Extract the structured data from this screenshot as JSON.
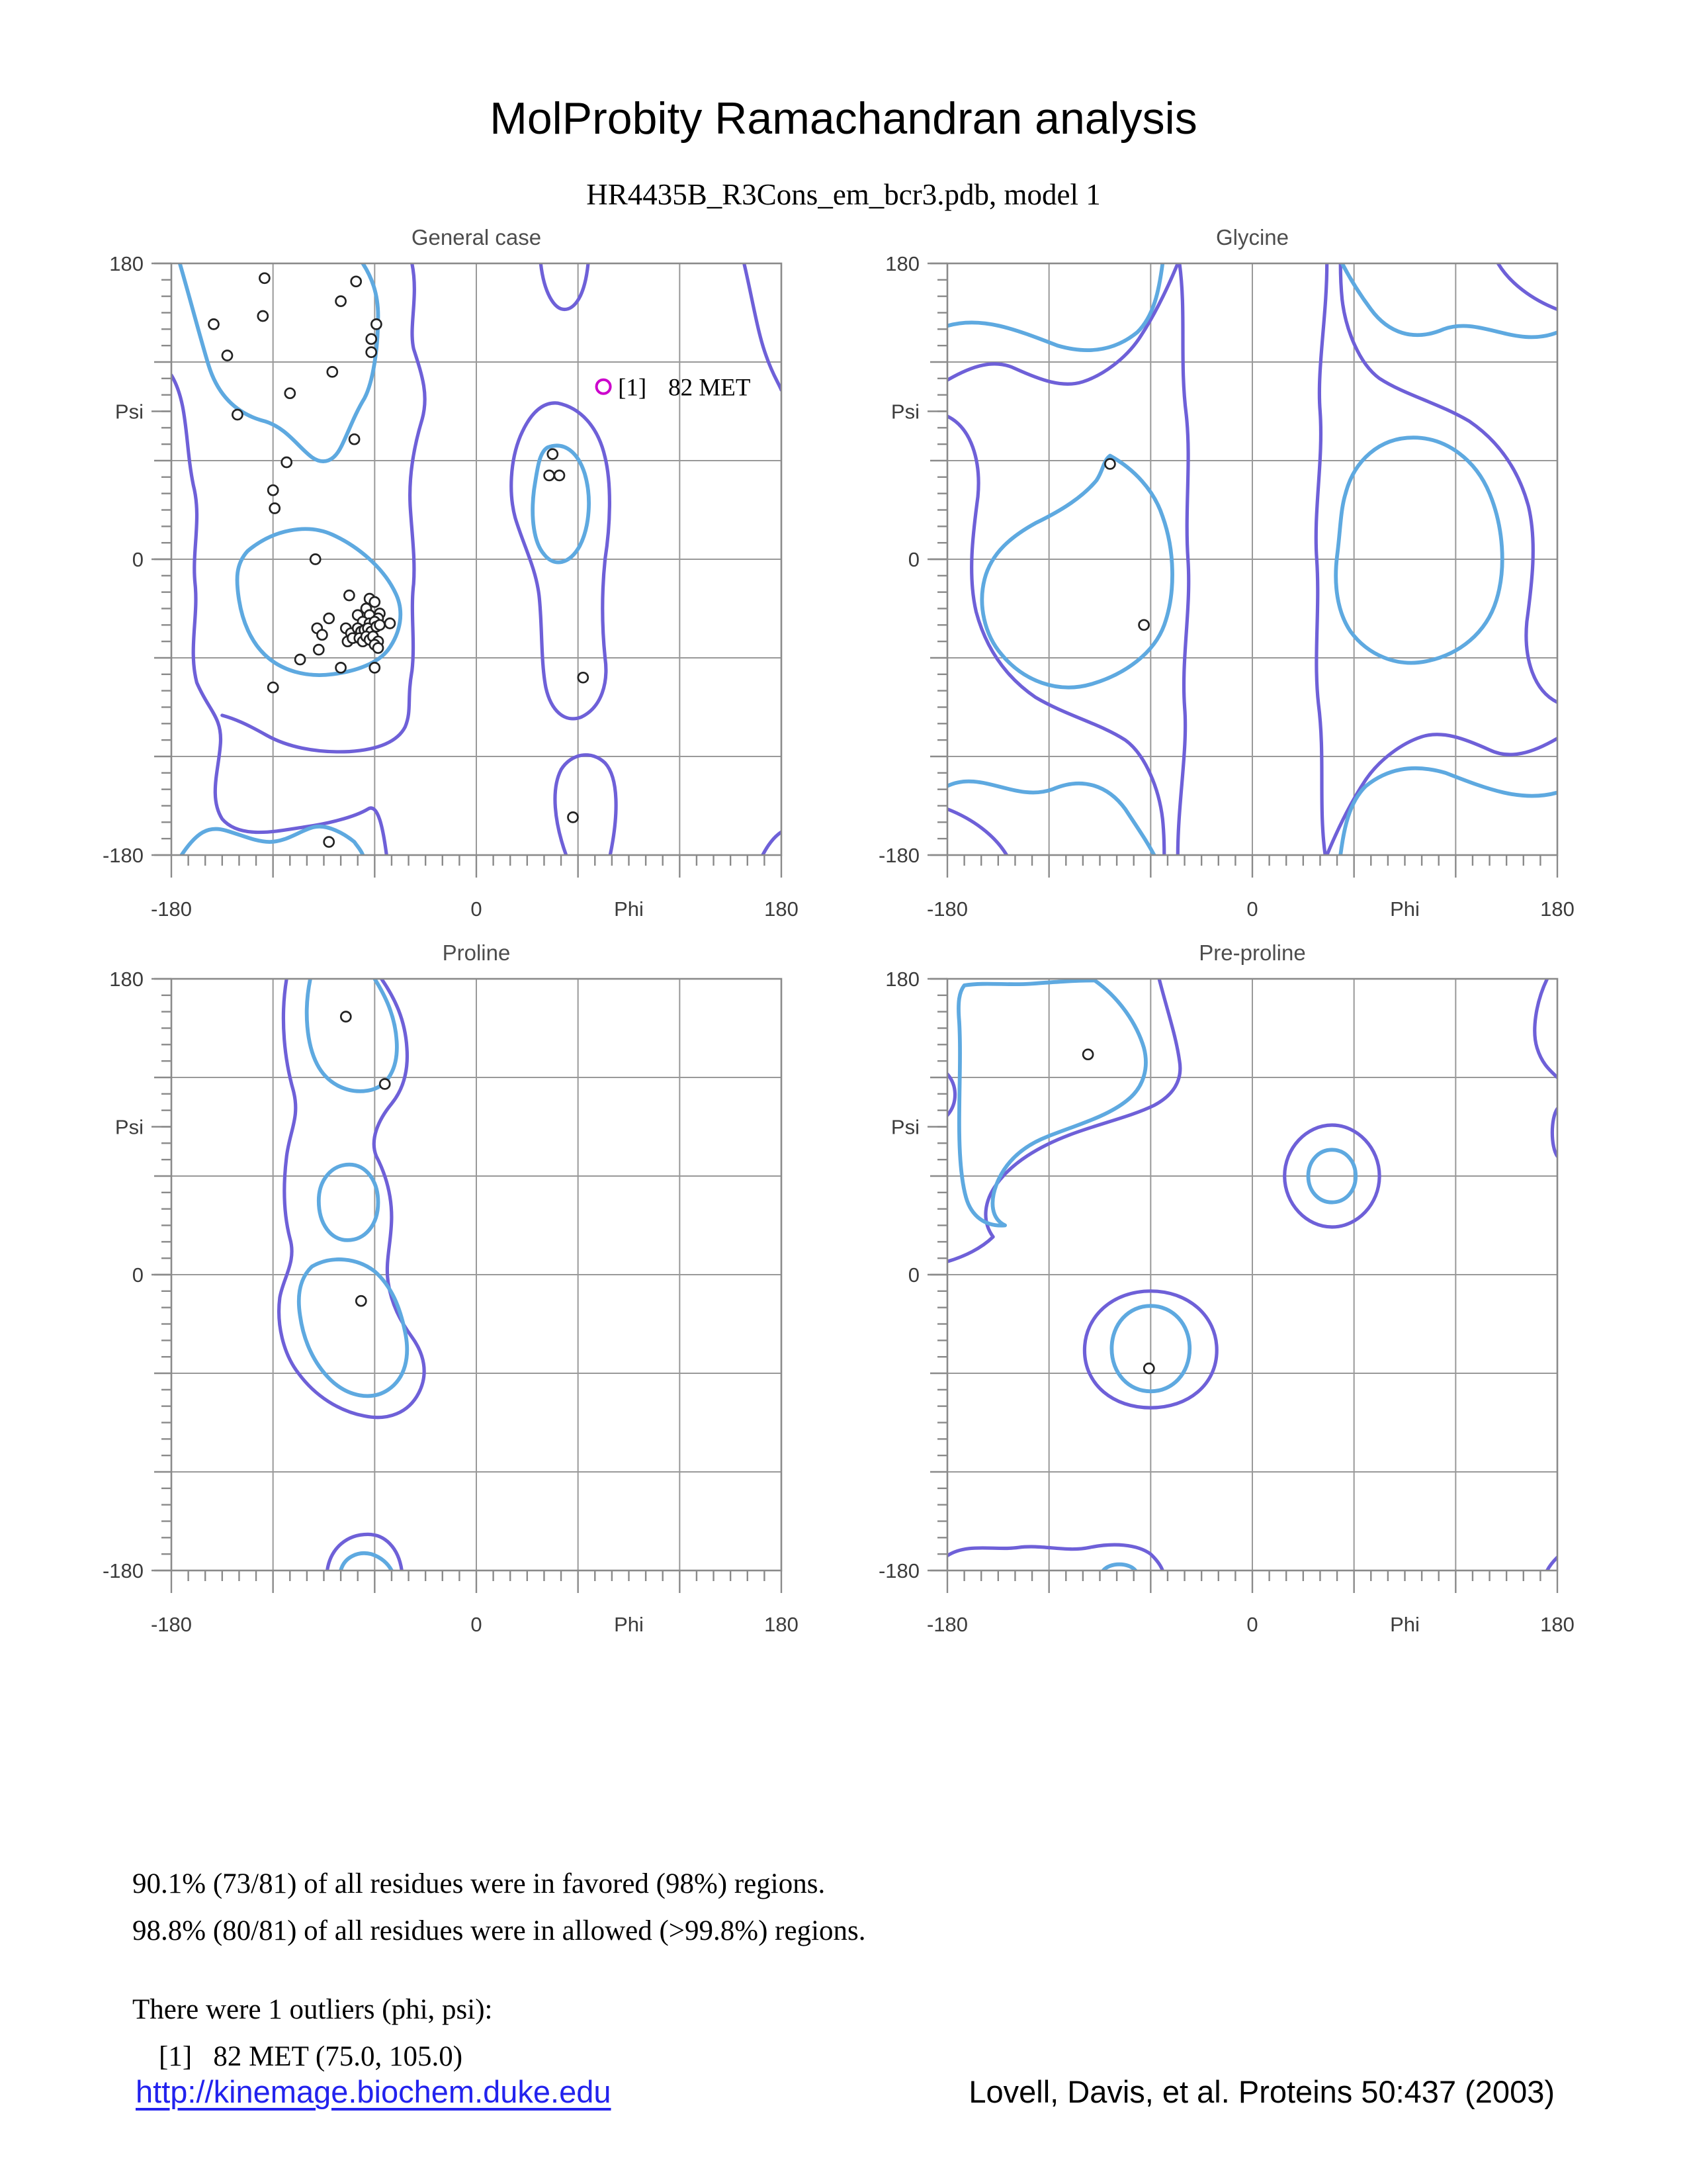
{
  "title": "MolProbity Ramachandran analysis",
  "subtitle": "HR4435B_R3Cons_em_bcr3.pdb, model 1",
  "colors": {
    "favored_contour": "#5ea9e0",
    "allowed_contour": "#6e60d8",
    "outlier": "#cc00cc",
    "grid": "#999999",
    "spine": "#8a8a8a",
    "point_stroke": "#222222",
    "label": "#3c3c3c",
    "plot_title": "#4d4d4d",
    "link": "#2222ee"
  },
  "axis": {
    "min": -180,
    "max": 180,
    "grid_step": 60,
    "tick_step": 10,
    "y_labels": [
      {
        "v": 180,
        "t": "180"
      },
      {
        "v": 90,
        "t": "Psi"
      },
      {
        "v": 0,
        "t": "0"
      },
      {
        "v": -180,
        "t": "-180"
      }
    ],
    "x_labels": [
      {
        "v": -180,
        "t": "-180"
      },
      {
        "v": 0,
        "t": "0"
      },
      {
        "v": 90,
        "t": "Phi"
      },
      {
        "v": 180,
        "t": "180"
      }
    ]
  },
  "chart_data": [
    {
      "type": "scatter",
      "title": "General case",
      "xlabel": "Phi",
      "ylabel": "Psi",
      "xlim": [
        -180,
        180
      ],
      "ylim": [
        -180,
        180
      ],
      "points": [
        [
          -125,
          171
        ],
        [
          -71,
          169
        ],
        [
          -80,
          157
        ],
        [
          -126,
          148
        ],
        [
          -155,
          143
        ],
        [
          -59,
          143
        ],
        [
          -62,
          134
        ],
        [
          -62,
          126
        ],
        [
          -147,
          124
        ],
        [
          -85,
          114
        ],
        [
          -110,
          101
        ],
        [
          -141,
          88
        ],
        [
          -72,
          73
        ],
        [
          -112,
          59
        ],
        [
          -120,
          42
        ],
        [
          -119,
          31
        ],
        [
          -95,
          0
        ],
        [
          -75,
          -22
        ],
        [
          -63,
          -24
        ],
        [
          -60,
          -26
        ],
        [
          -65,
          -30
        ],
        [
          -57,
          -33
        ],
        [
          -87,
          -36
        ],
        [
          -70,
          -34
        ],
        [
          -63,
          -34
        ],
        [
          -58,
          -36
        ],
        [
          -67,
          -38
        ],
        [
          -63,
          -39
        ],
        [
          -60,
          -38
        ],
        [
          -94,
          -42
        ],
        [
          -91,
          -46
        ],
        [
          -77,
          -42
        ],
        [
          -74,
          -45
        ],
        [
          -70,
          -42
        ],
        [
          -68,
          -44
        ],
        [
          -66,
          -43
        ],
        [
          -64,
          -42
        ],
        [
          -62,
          -44
        ],
        [
          -59,
          -41
        ],
        [
          -57,
          -40
        ],
        [
          -51,
          -39
        ],
        [
          -76,
          -50
        ],
        [
          -73,
          -48
        ],
        [
          -69,
          -48
        ],
        [
          -67,
          -50
        ],
        [
          -65,
          -47
        ],
        [
          -63,
          -49
        ],
        [
          -61,
          -47
        ],
        [
          -58,
          -50
        ],
        [
          -93,
          -55
        ],
        [
          -60,
          -52
        ],
        [
          -58,
          -54
        ],
        [
          -104,
          -61
        ],
        [
          -60,
          -66
        ],
        [
          -80,
          -66
        ],
        [
          -120,
          -78
        ],
        [
          45,
          64
        ],
        [
          43,
          51
        ],
        [
          49,
          51
        ],
        [
          63,
          -72
        ],
        [
          57,
          -157
        ],
        [
          -87,
          -172
        ]
      ],
      "outliers": [
        {
          "index": "[1]",
          "label": "82 MET",
          "phi": 75,
          "psi": 105
        }
      ],
      "contours": {
        "favored": [
          "M -175 180 C -168 155 -163 135 -158 118 C -152 98 -140 88 -125 84 C -112 80 -105 68 -97 62 C -90 57 -84 60 -80 68 C -76 76 -72 88 -66 98 C -61 108 -58 128 -58 148 C -58 162 -62 172 -67 180",
          "M -135 5 C -120 18 -100 22 -85 15 C -70 8 -55 -5 -48 -20 C -42 -32 -45 -45 -52 -55 C -58 -63 -70 -68 -85 -70 C -100 -72 -115 -68 -125 -58 C -133 -50 -138 -38 -140 -25 C -142 -12 -142 -3 -135 5 Z",
          "M 42 68 C 52 72 60 65 64 52 C 68 38 67 20 61 8 C 55 -3 46 -5 40 3 C 34 10 32 25 34 42 C 36 55 37 65 42 68 Z",
          "M -174 -180 C -165 -166 -158 -162 -148 -165 C -138 -168 -130 -172 -122 -172 C -112 -172 -104 -165 -96 -163 C -88 -161 -78 -167 -72 -172 C -70 -175 -68 -177 -67 -180"
        ],
        "allowed": [
          "M -180 112 C -170 95 -172 70 -167 45 C -162 25 -168 5 -166 -15 C -164 -35 -170 -55 -165 -75 C -158 -92 -150 -96 -151 -112 C -152 -128 -158 -145 -150 -158 C -140 -170 -120 -166 -102 -163 C -88 -161 -72 -157 -64 -152 C -58 -148 -55 -164 -53 -180",
          "M -38 180 C -34 160 -40 142 -37 128 C -32 112 -28 100 -32 85 C -37 68 -40 50 -39 32 C -38 15 -36 0 -37 -15 C -39 -32 -36 -50 -38 -68 C -41 -85 -38 -92 -42 -102 C -47 -112 -60 -116 -75 -117 C -95 -118 -112 -114 -124 -107 C -136 -100 -143 -97 -150 -95",
          "M 48 95 C 62 92 72 80 76 62 C 80 45 79 20 76 0 C 74 -20 74 -40 76 -60 C 78 -75 74 -90 62 -96 C 52 -100 44 -92 41 -78 C 38 -62 39 -40 37 -22 C 35 -5 28 8 23 25 C 19 40 20 60 26 75 C 31 87 38 96 48 95 Z",
          "M 53 -180 C 46 -160 44 -140 50 -128 C 56 -118 68 -116 76 -124 C 84 -133 84 -155 79 -180",
          "M 38 180 C 40 162 46 152 52 152 C 58 152 64 160 66 180",
          "M 158 180 C 163 158 166 138 171 124 C 175 112 178 108 180 103",
          "M 169 -180 C 173 -172 177 -168 180 -166"
        ]
      }
    },
    {
      "type": "scatter",
      "title": "Glycine",
      "xlabel": "Phi",
      "ylabel": "Psi",
      "xlim": [
        -180,
        180
      ],
      "ylim": [
        -180,
        180
      ],
      "points": [
        [
          -84,
          58
        ],
        [
          -64,
          -40
        ]
      ],
      "outliers": [],
      "contours": {
        "favored": [
          "M -180 142 C -160 148 -140 140 -115 130 C -95 124 -80 128 -68 138 C -58 148 -55 164 -53 180",
          "M -84 63 C -70 55 -58 42 -53 26 C -46 6 -45 -20 -52 -40 C -58 -57 -75 -70 -95 -76 C -115 -82 -135 -74 -148 -58 C -158 -46 -162 -28 -158 -12 C -154 4 -142 14 -128 22 C -112 30 -100 38 -92 48 C -88 54 -88 60 -84 63 Z",
          "M -180 -138 C -160 -128 -140 -148 -118 -140 C -100 -132 -85 -138 -75 -152 C -68 -163 -62 -172 -58 -180",
          "M 55 40 C 60 60 75 74 95 74 C 115 74 132 60 140 40 C 148 20 150 -5 144 -25 C 138 -45 122 -58 103 -62 C 85 -66 68 -58 58 -44 C 50 -32 48 -15 50 2 C 52 18 52 30 55 40 Z",
          "M 53 180 C 57 172 62 163 70 152 C 80 138 95 132 113 140 C 135 148 155 128 180 138",
          "M 52 -180 C 54 -164 57 -148 67 -138 C 79 -128 94 -124 114 -130 C 139 -140 159 -148 180 -142"
        ],
        "allowed": [
          "M -180 109 C -165 118 -152 122 -140 116 C -125 109 -112 104 -100 108 C -88 112 -75 122 -67 134 C -58 148 -50 165 -44 180",
          "M -43 180 C -39 150 -43 120 -39 88 C -36 60 -40 30 -38 0 C -36 -30 -42 -60 -40 -90 C -38 -115 -44 -148 -44 -180",
          "M -180 87 C -166 80 -160 60 -162 38 C -165 15 -168 -10 -163 -32 C -157 -55 -145 -72 -128 -84 C -110 -95 -90 -100 -75 -110 C -63 -119 -55 -140 -53 -158 C -52 -168 -52 -175 -52 -180",
          "M 180 -109 C 165 -118 152 -122 140 -116 C 125 -109 112 -104 100 -108 C 88 -112 75 -122 67 -134 C 58 -148 50 -165 44 -180",
          "M 43 -180 C 39 -150 43 -120 39 -88 C 36 -60 40 -30 38 0 C 36 30 42 60 40 90 C 38 115 44 148 44 180",
          "M 180 -87 C 166 -80 160 -60 162 -38 C 165 -15 168 10 163 32 C 157 55 145 72 128 84 C 110 95 90 100 75 110 C 63 119 55 140 53 158 C 52 168 52 175 52 180",
          "M 145 180 C 152 168 165 158 180 152",
          "M -145 -180 C -152 -168 -165 -158 -180 -152"
        ]
      }
    },
    {
      "type": "scatter",
      "title": "Proline",
      "xlabel": "Phi",
      "ylabel": "Psi",
      "xlim": [
        -180,
        180
      ],
      "ylim": [
        -180,
        180
      ],
      "points": [
        [
          -77,
          157
        ],
        [
          -54,
          116
        ],
        [
          -68,
          -16
        ]
      ],
      "outliers": [],
      "contours": {
        "favored": [
          "M -98 180 C -102 160 -100 140 -94 128 C -88 116 -76 110 -64 112 C -52 114 -46 126 -47 142 C -48 158 -54 170 -60 180",
          "M -75 67 C -65 67 -58 57 -58 44 C -58 30 -66 21 -76 21 C -86 21 -93 31 -93 45 C -93 58 -85 67 -75 67 Z",
          "M -97 5 C -85 12 -70 10 -60 2 C -50 -7 -45 -20 -42 -35 C -39 -50 -42 -63 -52 -70 C -62 -77 -76 -74 -86 -64 C -96 -54 -102 -40 -104 -25 C -106 -12 -104 -2 -97 5 Z",
          "M -80 -180 C -78 -172 -70 -168 -62 -170 C -56 -172 -52 -176 -50 -180"
        ],
        "allowed": [
          "M -112 180 C -116 155 -113 130 -108 112 C -104 96 -110 88 -112 72 C -114 55 -114 38 -110 22 C -106 8 -114 -2 -116 -14 C -118 -30 -114 -48 -105 -60 C -95 -74 -81 -83 -66 -86 C -52 -89 -40 -84 -34 -72 C -28 -60 -31 -48 -38 -38 C -45 -28 -50 -18 -52 -5 C -54 8 -50 20 -50 35 C -50 50 -54 62 -59 72 C -63 82 -58 94 -50 104 C -43 113 -40 124 -41 138 C -42 155 -48 168 -56 180",
          "M -88 -180 C -86 -166 -76 -158 -64 -158 C -54 -158 -46 -166 -44 -180"
        ]
      }
    },
    {
      "type": "scatter",
      "title": "Pre-proline",
      "xlabel": "Phi",
      "ylabel": "Psi",
      "xlim": [
        -180,
        180
      ],
      "ylim": [
        -180,
        180
      ],
      "points": [
        [
          -97,
          134
        ],
        [
          -61,
          -57
        ]
      ],
      "outliers": [],
      "contours": {
        "favored": [
          "M -93 179 C -78 168 -68 152 -64 138 C -61 126 -64 114 -74 106 C -86 96 -104 91 -121 84 C -136 78 -146 68 -151 55 C -155 44 -154 34 -146 30 C -158 29 -166 36 -169 47 C -172 58 -173 74 -173 92 C -173 114 -172 136 -173 154 C -174 166 -173 172 -170 176 C -158 178 -144 176 -131 177 C -118 178 -105 179 -93 179 Z",
          "M 47 76 C 55 76 61 69 61 60 C 61 51 55 44 47 44 C 39 44 33 51 33 60 C 33 69 39 76 47 76 Z",
          "M -60 -19 C -47 -19 -37 -30 -37 -45 C -37 -60 -47 -71 -60 -71 C -73 -71 -83 -60 -83 -45 C -83 -30 -73 -19 -60 -19 Z",
          "M -88 -180 C -84 -175 -73 -175 -69 -180"
        ],
        "allowed": [
          "M -55 180 C -50 160 -45 145 -43 130 C -41 118 -47 109 -58 103 C -72 96 -90 92 -108 85 C -126 78 -142 68 -151 55 C -158 45 -160 33 -153 23 C -160 16 -170 11 -180 8",
          "M 47 91 C 62 91 75 77 75 60 C 75 43 62 29 47 29 C 32 29 19 43 19 60 C 19 77 32 91 47 91 Z",
          "M -60 -10 C -38 -10 -21 -25 -21 -46 C -21 -67 -38 -81 -60 -81 C -82 -81 -99 -67 -99 -46 C -99 -25 -82 -10 -60 -10 Z",
          "M -180 122 C -174 115 -174 104 -180 97",
          "M -180 -171 C -168 -163 -152 -168 -138 -166 C -124 -164 -110 -169 -96 -166 C -82 -163 -68 -164 -60 -170 C -56 -174 -54 -177 -53 -180",
          "M 174 180 C 167 165 165 148 168 138 C 171 128 176 124 180 120",
          "M 180 101 C 176 95 176 78 180 72",
          "M 180 -172 C 177 -175 175 -178 174 -180"
        ]
      }
    }
  ],
  "summary": {
    "line1": "90.1% (73/81) of all residues were in favored (98%) regions.",
    "line2": "98.8% (80/81) of all residues were in allowed (>99.8%) regions.",
    "line3": "There were 1 outliers (phi, psi):",
    "line4": "[1]   82 MET (75.0, 105.0)"
  },
  "footer": {
    "link": "http://kinemage.biochem.duke.edu",
    "citation": "Lovell, Davis, et al. Proteins 50:437 (2003)"
  }
}
